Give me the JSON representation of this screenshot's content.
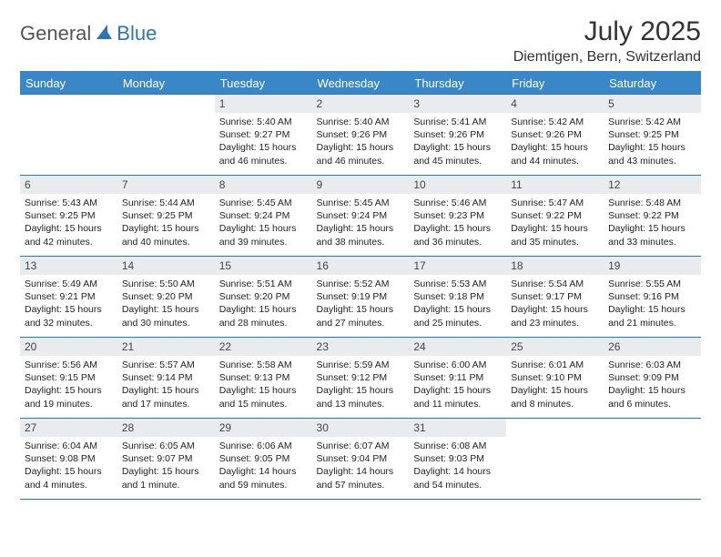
{
  "brand": {
    "part1": "General",
    "part2": "Blue"
  },
  "title": "July 2025",
  "location": "Diemtigen, Bern, Switzerland",
  "colors": {
    "header_bg": "#3a87c8",
    "header_text": "#ffffff",
    "daynum_bg": "#e9ecef",
    "rule": "#2d73b8",
    "brand_accent": "#2d73b8",
    "brand_gray": "#555555",
    "body_text": "#222222",
    "page_bg": "#ffffff"
  },
  "weekdays": [
    "Sunday",
    "Monday",
    "Tuesday",
    "Wednesday",
    "Thursday",
    "Friday",
    "Saturday"
  ],
  "weeks": [
    [
      null,
      null,
      {
        "n": "1",
        "sr": "5:40 AM",
        "ss": "9:27 PM",
        "dl": "15 hours and 46 minutes."
      },
      {
        "n": "2",
        "sr": "5:40 AM",
        "ss": "9:26 PM",
        "dl": "15 hours and 46 minutes."
      },
      {
        "n": "3",
        "sr": "5:41 AM",
        "ss": "9:26 PM",
        "dl": "15 hours and 45 minutes."
      },
      {
        "n": "4",
        "sr": "5:42 AM",
        "ss": "9:26 PM",
        "dl": "15 hours and 44 minutes."
      },
      {
        "n": "5",
        "sr": "5:42 AM",
        "ss": "9:25 PM",
        "dl": "15 hours and 43 minutes."
      }
    ],
    [
      {
        "n": "6",
        "sr": "5:43 AM",
        "ss": "9:25 PM",
        "dl": "15 hours and 42 minutes."
      },
      {
        "n": "7",
        "sr": "5:44 AM",
        "ss": "9:25 PM",
        "dl": "15 hours and 40 minutes."
      },
      {
        "n": "8",
        "sr": "5:45 AM",
        "ss": "9:24 PM",
        "dl": "15 hours and 39 minutes."
      },
      {
        "n": "9",
        "sr": "5:45 AM",
        "ss": "9:24 PM",
        "dl": "15 hours and 38 minutes."
      },
      {
        "n": "10",
        "sr": "5:46 AM",
        "ss": "9:23 PM",
        "dl": "15 hours and 36 minutes."
      },
      {
        "n": "11",
        "sr": "5:47 AM",
        "ss": "9:22 PM",
        "dl": "15 hours and 35 minutes."
      },
      {
        "n": "12",
        "sr": "5:48 AM",
        "ss": "9:22 PM",
        "dl": "15 hours and 33 minutes."
      }
    ],
    [
      {
        "n": "13",
        "sr": "5:49 AM",
        "ss": "9:21 PM",
        "dl": "15 hours and 32 minutes."
      },
      {
        "n": "14",
        "sr": "5:50 AM",
        "ss": "9:20 PM",
        "dl": "15 hours and 30 minutes."
      },
      {
        "n": "15",
        "sr": "5:51 AM",
        "ss": "9:20 PM",
        "dl": "15 hours and 28 minutes."
      },
      {
        "n": "16",
        "sr": "5:52 AM",
        "ss": "9:19 PM",
        "dl": "15 hours and 27 minutes."
      },
      {
        "n": "17",
        "sr": "5:53 AM",
        "ss": "9:18 PM",
        "dl": "15 hours and 25 minutes."
      },
      {
        "n": "18",
        "sr": "5:54 AM",
        "ss": "9:17 PM",
        "dl": "15 hours and 23 minutes."
      },
      {
        "n": "19",
        "sr": "5:55 AM",
        "ss": "9:16 PM",
        "dl": "15 hours and 21 minutes."
      }
    ],
    [
      {
        "n": "20",
        "sr": "5:56 AM",
        "ss": "9:15 PM",
        "dl": "15 hours and 19 minutes."
      },
      {
        "n": "21",
        "sr": "5:57 AM",
        "ss": "9:14 PM",
        "dl": "15 hours and 17 minutes."
      },
      {
        "n": "22",
        "sr": "5:58 AM",
        "ss": "9:13 PM",
        "dl": "15 hours and 15 minutes."
      },
      {
        "n": "23",
        "sr": "5:59 AM",
        "ss": "9:12 PM",
        "dl": "15 hours and 13 minutes."
      },
      {
        "n": "24",
        "sr": "6:00 AM",
        "ss": "9:11 PM",
        "dl": "15 hours and 11 minutes."
      },
      {
        "n": "25",
        "sr": "6:01 AM",
        "ss": "9:10 PM",
        "dl": "15 hours and 8 minutes."
      },
      {
        "n": "26",
        "sr": "6:03 AM",
        "ss": "9:09 PM",
        "dl": "15 hours and 6 minutes."
      }
    ],
    [
      {
        "n": "27",
        "sr": "6:04 AM",
        "ss": "9:08 PM",
        "dl": "15 hours and 4 minutes."
      },
      {
        "n": "28",
        "sr": "6:05 AM",
        "ss": "9:07 PM",
        "dl": "15 hours and 1 minute."
      },
      {
        "n": "29",
        "sr": "6:06 AM",
        "ss": "9:05 PM",
        "dl": "14 hours and 59 minutes."
      },
      {
        "n": "30",
        "sr": "6:07 AM",
        "ss": "9:04 PM",
        "dl": "14 hours and 57 minutes."
      },
      {
        "n": "31",
        "sr": "6:08 AM",
        "ss": "9:03 PM",
        "dl": "14 hours and 54 minutes."
      },
      null,
      null
    ]
  ],
  "labels": {
    "sunrise": "Sunrise:",
    "sunset": "Sunset:",
    "daylight": "Daylight:"
  }
}
